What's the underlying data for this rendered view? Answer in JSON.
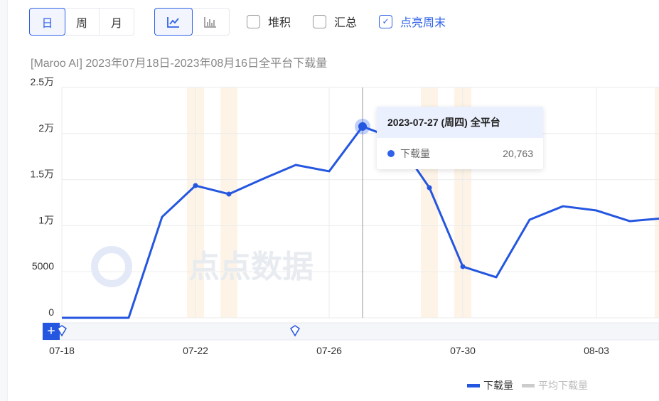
{
  "controls": {
    "granularity": [
      {
        "label": "日",
        "active": true
      },
      {
        "label": "周",
        "active": false
      },
      {
        "label": "月",
        "active": false
      }
    ],
    "chart_types": [
      {
        "icon": "line-chart-icon",
        "active": true
      },
      {
        "icon": "bar-chart-icon",
        "active": false
      }
    ],
    "checkboxes": [
      {
        "label": "堆积",
        "checked": false
      },
      {
        "label": "汇总",
        "checked": false
      },
      {
        "label": "点亮周末",
        "checked": true
      }
    ]
  },
  "subtitle": "[Maroo AI]  2023年07月18日-2023年08月16日全平台下载量",
  "watermark": "点点数据",
  "tooltip": {
    "title": "2023-07-27 (周四) 全平台",
    "series": "下载量",
    "value": "20,763"
  },
  "colors": {
    "line": "#2456e0",
    "weekend": "#fdf4e7",
    "grid": "#ebebeb"
  },
  "chart_data": {
    "type": "line",
    "x": [
      "07-18",
      "07-19",
      "07-20",
      "07-21",
      "07-22",
      "07-23",
      "07-24",
      "07-25",
      "07-26",
      "07-27",
      "07-28",
      "07-29",
      "07-30",
      "07-31",
      "08-01",
      "08-02",
      "08-03",
      "08-04",
      "08-05"
    ],
    "series": [
      {
        "name": "下载量",
        "values": [
          0,
          0,
          0,
          10950,
          14350,
          13430,
          15050,
          16590,
          15900,
          20763,
          19400,
          14120,
          5560,
          4400,
          10650,
          12110,
          11650,
          10490,
          10800
        ]
      }
    ],
    "weekends": [
      "07-22",
      "07-23",
      "07-29",
      "07-30",
      "08-05"
    ],
    "ylim": [
      0,
      25000
    ],
    "yticks": [
      {
        "v": 0,
        "label": "0"
      },
      {
        "v": 5000,
        "label": "5000"
      },
      {
        "v": 10000,
        "label": "1万"
      },
      {
        "v": 15000,
        "label": "1.5万"
      },
      {
        "v": 20000,
        "label": "2万"
      },
      {
        "v": 25000,
        "label": "2.5万"
      }
    ],
    "xticks": [
      "07-18",
      "07-22",
      "07-26",
      "07-30",
      "08-03"
    ],
    "grid": true,
    "legend": [
      {
        "name": "下载量",
        "color": "#2456e0",
        "active": true
      },
      {
        "name": "平均下载量",
        "color": "#cccccc",
        "active": false
      }
    ],
    "legend_position": "bottom-right",
    "highlight": "07-27"
  }
}
